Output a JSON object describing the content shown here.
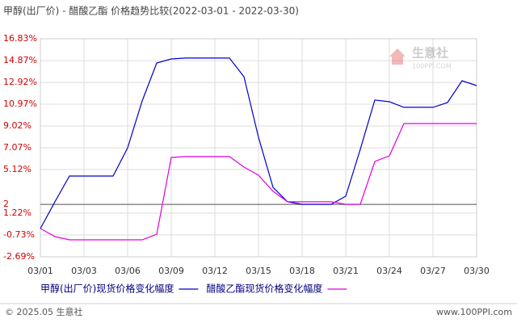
{
  "chart_data": {
    "type": "line",
    "title": "甲醇(出厂价) - 醋酸乙酯 价格趋势比较(2022-03-01 - 2022-03-30)",
    "categories": [
      "03/01",
      null,
      null,
      "03/03",
      null,
      null,
      "03/06",
      null,
      null,
      "03/09",
      null,
      null,
      "03/12",
      null,
      null,
      "03/15",
      null,
      null,
      "03/18",
      null,
      null,
      "03/21",
      null,
      null,
      "03/24",
      null,
      null,
      "03/27",
      null,
      null,
      "03/30"
    ],
    "series": [
      {
        "name": "甲醇(出厂价)现货价格变化幅度",
        "color": "#0000cc",
        "values": [
          -0.16,
          2.23,
          4.54,
          4.54,
          4.54,
          4.54,
          7.07,
          11.26,
          14.66,
          15.02,
          15.1,
          15.1,
          15.1,
          15.1,
          13.43,
          8.0,
          3.53,
          2.23,
          2.01,
          2.01,
          2.01,
          2.73,
          6.93,
          11.34,
          11.19,
          10.69,
          10.69,
          10.69,
          11.12,
          13.07,
          12.64
        ]
      },
      {
        "name": "醋酸乙酯现货价格变化幅度",
        "color": "#e000e0",
        "values": [
          -0.16,
          -0.88,
          -1.17,
          -1.17,
          -1.17,
          -1.17,
          -1.17,
          -1.17,
          -0.67,
          6.2,
          6.28,
          6.28,
          6.28,
          6.28,
          5.34,
          4.61,
          3.17,
          2.23,
          2.23,
          2.23,
          2.23,
          2.01,
          2.01,
          5.84,
          6.35,
          9.24,
          9.24,
          9.24,
          9.24,
          9.24,
          9.24
        ]
      }
    ],
    "ylim": [
      -2.69,
      16.83
    ],
    "yticks": [
      {
        "value": -2.69,
        "label": "-2.69%"
      },
      {
        "value": -0.73,
        "label": "-0.73%"
      },
      {
        "value": 1.22,
        "label": "1.22%"
      },
      2,
      {
        "value": 5.12,
        "label": "5.12%"
      },
      {
        "value": 7.07,
        "label": "7.07%"
      },
      {
        "value": 9.02,
        "label": "9.02%"
      },
      {
        "value": 10.97,
        "label": "10.97%"
      },
      {
        "value": 12.92,
        "label": "12.92%"
      },
      {
        "value": 14.87,
        "label": "14.87%"
      },
      {
        "value": 16.83,
        "label": "16.83%"
      }
    ],
    "baseline": 2,
    "grid": true,
    "watermark": {
      "name": "生意社",
      "site": "100PPI.COM"
    },
    "footer": {
      "left": "© 2025.05 生意社",
      "right": "www.100PPI.com"
    }
  }
}
